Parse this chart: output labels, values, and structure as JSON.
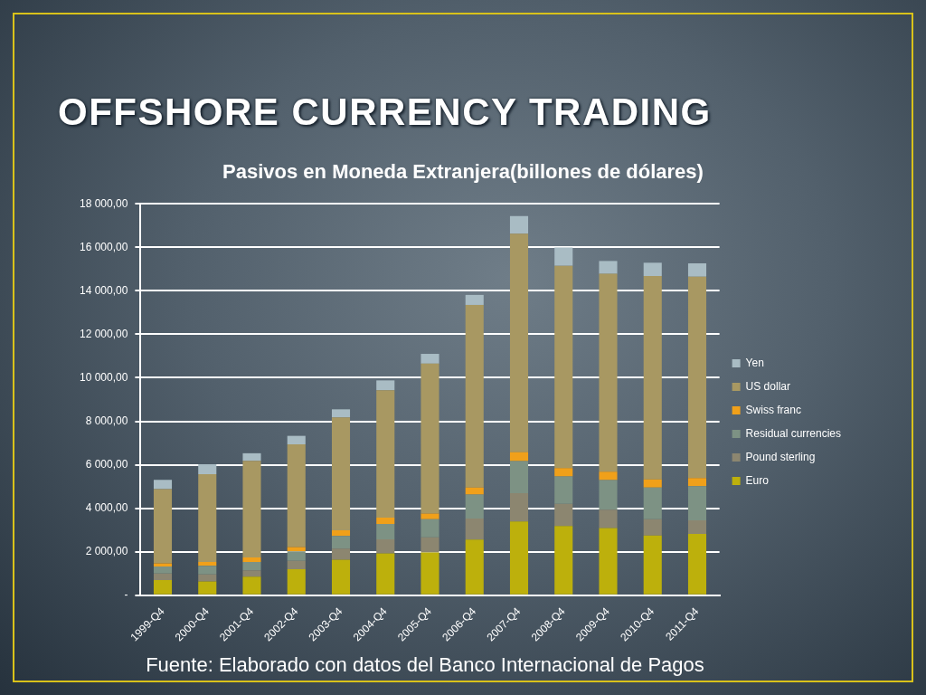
{
  "chart_data": {
    "type": "bar",
    "title": "OFFSHORE CURRENCY TRADING",
    "subtitle": "Pasivos en Moneda Extranjera(billones de dólares)",
    "annotations": [
      "Fuente: Elaborado con datos del Banco Internacional de Pagos"
    ],
    "categories": [
      "1999-Q4",
      "2000-Q4",
      "2001-Q4",
      "2002-Q4",
      "2003-Q4",
      "2004-Q4",
      "2005-Q4",
      "2006-Q4",
      "2007-Q4",
      "2008-Q4",
      "2009-Q4",
      "2010-Q4",
      "2011-Q4"
    ],
    "stacked": true,
    "series": [
      {
        "name": "Euro",
        "color": "#bdb00c",
        "values": [
          700,
          640,
          860,
          1200,
          1640,
          1930,
          1970,
          2560,
          3390,
          3180,
          3090,
          2750,
          2820
        ]
      },
      {
        "name": "Pound sterling",
        "color": "#8c8670",
        "values": [
          300,
          320,
          290,
          380,
          510,
          640,
          700,
          970,
          1300,
          1020,
          840,
          750,
          620
        ]
      },
      {
        "name": "Residual currencies",
        "color": "#7d9284",
        "values": [
          320,
          390,
          380,
          440,
          580,
          710,
          830,
          1100,
          1480,
          1260,
          1370,
          1450,
          1580
        ]
      },
      {
        "name": "Swiss franc",
        "color": "#f0a01a",
        "values": [
          150,
          180,
          210,
          200,
          260,
          290,
          260,
          320,
          410,
          390,
          380,
          380,
          370
        ]
      },
      {
        "name": "US dollar",
        "color": "#a89862",
        "values": [
          3410,
          4040,
          4440,
          4720,
          5190,
          5860,
          6890,
          8400,
          10050,
          9300,
          9100,
          9350,
          9260
        ]
      },
      {
        "name": "Yen",
        "color": "#a9bcc4",
        "values": [
          430,
          450,
          350,
          390,
          370,
          450,
          450,
          460,
          810,
          840,
          590,
          610,
          610
        ]
      }
    ],
    "ylim": [
      0,
      18000
    ],
    "yticks": [
      {
        "value": 0,
        "label": "-"
      },
      {
        "value": 2000,
        "label": "2 000,00"
      },
      {
        "value": 4000,
        "label": "4 000,00"
      },
      {
        "value": 6000,
        "label": "6 000,00"
      },
      {
        "value": 8000,
        "label": "8 000,00"
      },
      {
        "value": 10000,
        "label": "10 000,00"
      },
      {
        "value": 12000,
        "label": "12 000,00"
      },
      {
        "value": 14000,
        "label": "14 000,00"
      },
      {
        "value": 16000,
        "label": "16 000,00"
      },
      {
        "value": 18000,
        "label": "18 000,00"
      }
    ],
    "grid": "y",
    "legend": "right"
  }
}
